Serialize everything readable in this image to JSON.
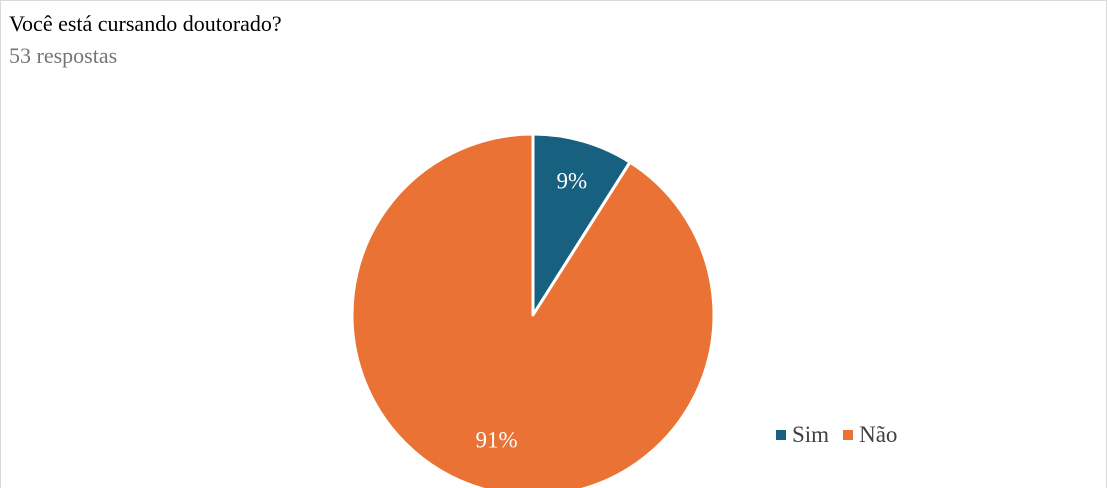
{
  "title": "Você está cursando doutorado?",
  "subtitle": "53 respostas",
  "colors": {
    "sim": "#17607f",
    "nao": "#e97234"
  },
  "chart_data": {
    "type": "pie",
    "title": "Você está cursando doutorado?",
    "categories": [
      "Sim",
      "Não"
    ],
    "values": [
      9,
      91
    ],
    "labels": [
      "9%",
      "91%"
    ],
    "legend_position": "bottom-right"
  }
}
